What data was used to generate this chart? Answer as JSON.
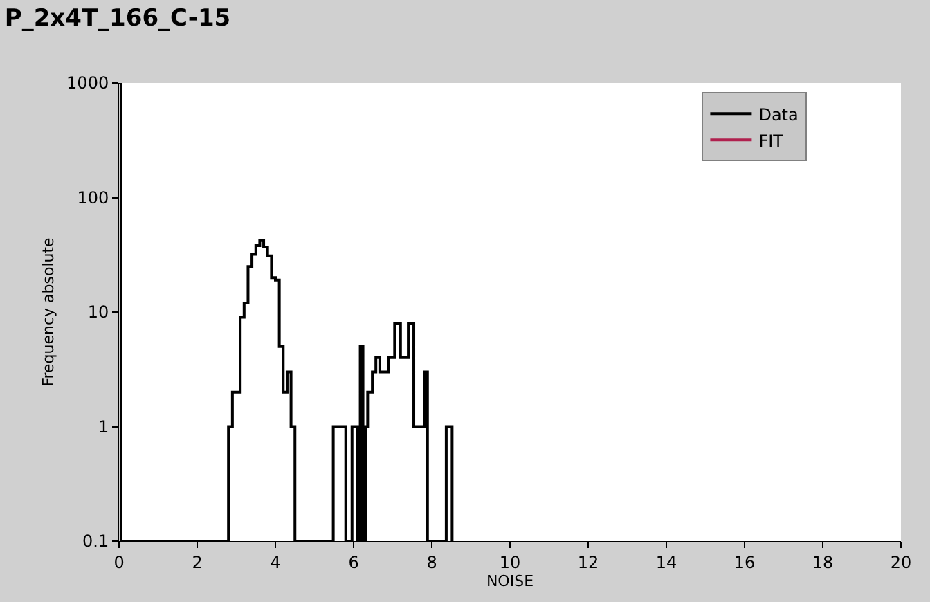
{
  "chart_data": {
    "type": "step",
    "title": "P_2x4T_166_C-15",
    "xlabel": "NOISE",
    "ylabel": "Frequency absolute",
    "log": "y",
    "xlim": [
      0,
      20
    ],
    "xticks": [
      0,
      2,
      4,
      6,
      8,
      10,
      12,
      14,
      16,
      18,
      20
    ],
    "ylim": [
      0.1,
      1000
    ],
    "yticks": [
      0.1,
      1,
      10,
      100,
      1000
    ],
    "legend": "top right",
    "marker": "none",
    "line_style": "solid",
    "series": [
      {
        "name": "Data",
        "color": "#000000",
        "x": [
          0,
          0.05,
          2.8,
          2.9,
          3.0,
          3.1,
          3.2,
          3.3,
          3.4,
          3.5,
          3.6,
          3.7,
          3.8,
          3.9,
          4.0,
          4.1,
          4.2,
          4.3,
          4.4,
          4.5,
          5.48,
          5.8,
          5.96,
          6.1,
          6.17,
          6.24,
          6.31,
          6.36,
          6.48,
          6.57,
          6.67,
          6.9,
          7.05,
          7.2,
          7.4,
          7.54,
          7.81,
          7.89,
          8.37,
          8.52
        ],
        "values": [
          1000,
          0.1,
          1,
          2,
          2,
          9,
          12,
          25,
          32,
          38,
          42,
          37,
          31,
          20,
          19,
          5,
          2,
          3,
          1,
          0.1,
          1,
          0.1,
          1,
          0.1,
          5,
          0.1,
          1,
          2,
          3,
          4,
          3,
          4,
          8,
          4,
          8,
          1,
          3,
          0.1,
          1,
          0.1
        ]
      },
      {
        "name": "FIT",
        "color": "#b0204e"
      }
    ]
  }
}
